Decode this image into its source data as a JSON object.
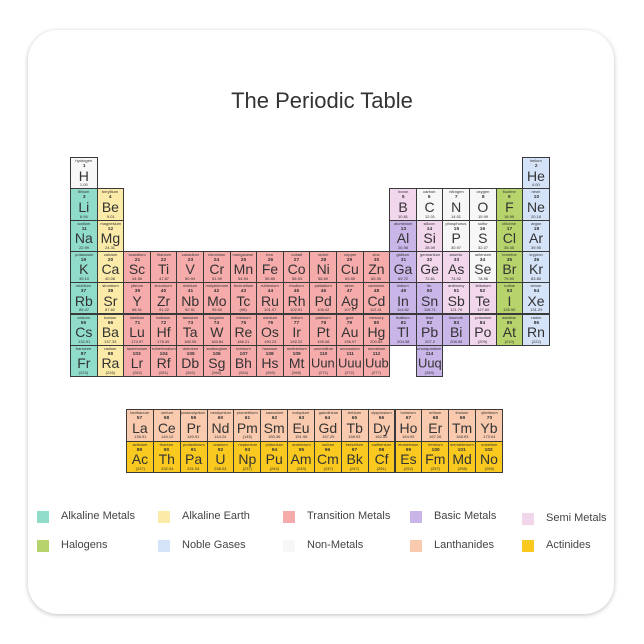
{
  "title": "The Periodic Table",
  "colors": {
    "alkaline": "#8fdccb",
    "alkaline_earth": "#fbeaa8",
    "transition": "#f6abab",
    "basic": "#c9b5e8",
    "semi": "#f1d6ec",
    "halogen": "#b6d36c",
    "noble": "#d5e3f8",
    "nonmetal": "#f7f7f7",
    "lanthanide": "#f9caae",
    "actinide": "#f9c920"
  },
  "legend": [
    {
      "key": "alkaline",
      "label": "Alkaline Metals"
    },
    {
      "key": "alkaline_earth",
      "label": "Alkaline Earth"
    },
    {
      "key": "transition",
      "label": "Transition Metals"
    },
    {
      "key": "basic",
      "label": "Basic Metals"
    },
    {
      "key": "semi",
      "label": "Semi Metals"
    },
    {
      "key": "halogen",
      "label": "Halogens"
    },
    {
      "key": "noble",
      "label": "Noble Gases"
    },
    {
      "key": "nonmetal",
      "label": "Non-Metals"
    },
    {
      "key": "lanthanide",
      "label": "Lanthanides"
    },
    {
      "key": "actinide",
      "label": "Actinides"
    }
  ],
  "elements": [
    [
      1,
      "H",
      "hydrogen",
      "1.00",
      "nonmetal",
      1,
      1
    ],
    [
      2,
      "He",
      "helium",
      "4.00",
      "noble",
      1,
      18
    ],
    [
      3,
      "Li",
      "lithium",
      "6.94",
      "alkaline",
      2,
      1
    ],
    [
      4,
      "Be",
      "beryllium",
      "9.01",
      "alkaline_earth",
      2,
      2
    ],
    [
      5,
      "B",
      "boron",
      "10.81",
      "semi",
      2,
      13
    ],
    [
      6,
      "C",
      "carbon",
      "12.01",
      "nonmetal",
      2,
      14
    ],
    [
      7,
      "N",
      "nitrogen",
      "14.01",
      "nonmetal",
      2,
      15
    ],
    [
      8,
      "O",
      "oxygen",
      "15.99",
      "nonmetal",
      2,
      16
    ],
    [
      9,
      "F",
      "fluorine",
      "18.99",
      "halogen",
      2,
      17
    ],
    [
      10,
      "Ne",
      "neon",
      "20.18",
      "noble",
      2,
      18
    ],
    [
      11,
      "Na",
      "sodium",
      "22.99",
      "alkaline",
      3,
      1
    ],
    [
      12,
      "Mg",
      "magnesium",
      "24.31",
      "alkaline_earth",
      3,
      2
    ],
    [
      13,
      "Al",
      "aluminium",
      "26.98",
      "basic",
      3,
      13
    ],
    [
      14,
      "Si",
      "silicon",
      "28.09",
      "semi",
      3,
      14
    ],
    [
      15,
      "P",
      "phosphorus",
      "30.97",
      "nonmetal",
      3,
      15
    ],
    [
      16,
      "S",
      "sulfur",
      "32.07",
      "nonmetal",
      3,
      16
    ],
    [
      17,
      "Cl",
      "chlorine",
      "35.45",
      "halogen",
      3,
      17
    ],
    [
      18,
      "Ar",
      "argon",
      "39.95",
      "noble",
      3,
      18
    ],
    [
      19,
      "K",
      "potassium",
      "39.10",
      "alkaline",
      4,
      1
    ],
    [
      20,
      "Ca",
      "calcium",
      "40.08",
      "alkaline_earth",
      4,
      2
    ],
    [
      21,
      "Sc",
      "scandium",
      "44.96",
      "transition",
      4,
      3
    ],
    [
      22,
      "Ti",
      "titanium",
      "47.87",
      "transition",
      4,
      4
    ],
    [
      23,
      "V",
      "vanadium",
      "50.94",
      "transition",
      4,
      5
    ],
    [
      24,
      "Cr",
      "chromium",
      "51.99",
      "transition",
      4,
      6
    ],
    [
      25,
      "Mn",
      "manganese",
      "54.94",
      "transition",
      4,
      7
    ],
    [
      26,
      "Fe",
      "iron",
      "55.85",
      "transition",
      4,
      8
    ],
    [
      27,
      "Co",
      "cobalt",
      "58.93",
      "transition",
      4,
      9
    ],
    [
      28,
      "Ni",
      "nickel",
      "58.69",
      "transition",
      4,
      10
    ],
    [
      29,
      "Cu",
      "copper",
      "63.55",
      "transition",
      4,
      11
    ],
    [
      30,
      "Zn",
      "zinc",
      "65.39",
      "transition",
      4,
      12
    ],
    [
      31,
      "Ga",
      "gallium",
      "69.72",
      "basic",
      4,
      13
    ],
    [
      32,
      "Ge",
      "germanium",
      "72.61",
      "semi",
      4,
      14
    ],
    [
      33,
      "As",
      "arsenic",
      "74.92",
      "semi",
      4,
      15
    ],
    [
      34,
      "Se",
      "selenium",
      "78.96",
      "nonmetal",
      4,
      16
    ],
    [
      35,
      "Br",
      "bromine",
      "79.90",
      "halogen",
      4,
      17
    ],
    [
      36,
      "Kr",
      "krypton",
      "83.80",
      "noble",
      4,
      18
    ],
    [
      37,
      "Rb",
      "rubidium",
      "85.47",
      "alkaline",
      5,
      1
    ],
    [
      38,
      "Sr",
      "strontium",
      "87.62",
      "alkaline_earth",
      5,
      2
    ],
    [
      39,
      "Y",
      "yttrium",
      "88.91",
      "transition",
      5,
      3
    ],
    [
      40,
      "Zr",
      "zirconium",
      "91.22",
      "transition",
      5,
      4
    ],
    [
      41,
      "Nb",
      "niobium",
      "92.91",
      "transition",
      5,
      5
    ],
    [
      42,
      "Mo",
      "molybdenum",
      "95.94",
      "transition",
      5,
      6
    ],
    [
      43,
      "Tc",
      "technetium",
      "(98)",
      "transition",
      5,
      7
    ],
    [
      44,
      "Ru",
      "ruthenium",
      "101.07",
      "transition",
      5,
      8
    ],
    [
      45,
      "Rh",
      "rhodium",
      "102.91",
      "transition",
      5,
      9
    ],
    [
      46,
      "Pd",
      "palladium",
      "106.42",
      "transition",
      5,
      10
    ],
    [
      47,
      "Ag",
      "silver",
      "107.87",
      "transition",
      5,
      11
    ],
    [
      48,
      "Cd",
      "cadmium",
      "112.41",
      "transition",
      5,
      12
    ],
    [
      49,
      "In",
      "indium",
      "114.82",
      "basic",
      5,
      13
    ],
    [
      50,
      "Sn",
      "tin",
      "118.71",
      "basic",
      5,
      14
    ],
    [
      51,
      "Sb",
      "antimony",
      "121.76",
      "semi",
      5,
      15
    ],
    [
      52,
      "Te",
      "tellurium",
      "127.60",
      "semi",
      5,
      16
    ],
    [
      53,
      "I",
      "iodine",
      "126.90",
      "halogen",
      5,
      17
    ],
    [
      54,
      "Xe",
      "xenon",
      "131.29",
      "noble",
      5,
      18
    ],
    [
      55,
      "Cs",
      "cesium",
      "132.91",
      "alkaline",
      6,
      1
    ],
    [
      56,
      "Ba",
      "barium",
      "137.33",
      "alkaline_earth",
      6,
      2
    ],
    [
      71,
      "Lu",
      "lutetium",
      "174.97",
      "transition",
      6,
      3
    ],
    [
      72,
      "Hf",
      "hafnium",
      "178.49",
      "transition",
      6,
      4
    ],
    [
      73,
      "Ta",
      "tantalum",
      "180.95",
      "transition",
      6,
      5
    ],
    [
      74,
      "W",
      "tungsten",
      "183.84",
      "transition",
      6,
      6
    ],
    [
      75,
      "Re",
      "rhenium",
      "186.21",
      "transition",
      6,
      7
    ],
    [
      76,
      "Os",
      "osmium",
      "190.23",
      "transition",
      6,
      8
    ],
    [
      77,
      "Ir",
      "iridium",
      "192.22",
      "transition",
      6,
      9
    ],
    [
      78,
      "Pt",
      "platinum",
      "195.08",
      "transition",
      6,
      10
    ],
    [
      79,
      "Au",
      "gold",
      "196.97",
      "transition",
      6,
      11
    ],
    [
      80,
      "Hg",
      "mercury",
      "200.59",
      "transition",
      6,
      12
    ],
    [
      81,
      "Tl",
      "thallium",
      "204.38",
      "basic",
      6,
      13
    ],
    [
      82,
      "Pb",
      "lead",
      "207.2",
      "basic",
      6,
      14
    ],
    [
      83,
      "Bi",
      "bismuth",
      "208.98",
      "basic",
      6,
      15
    ],
    [
      84,
      "Po",
      "polonium",
      "(209)",
      "semi",
      6,
      16
    ],
    [
      85,
      "At",
      "astatine",
      "(210)",
      "halogen",
      6,
      17
    ],
    [
      86,
      "Rn",
      "radon",
      "(222)",
      "noble",
      6,
      18
    ],
    [
      87,
      "Fr",
      "francium",
      "(223)",
      "alkaline",
      7,
      1
    ],
    [
      88,
      "Ra",
      "radium",
      "(226)",
      "alkaline_earth",
      7,
      2
    ],
    [
      103,
      "Lr",
      "lawrencium",
      "(262)",
      "transition",
      7,
      3
    ],
    [
      104,
      "Rf",
      "rutherfordium",
      "(261)",
      "transition",
      7,
      4
    ],
    [
      105,
      "Db",
      "dubnium",
      "(262)",
      "transition",
      7,
      5
    ],
    [
      106,
      "Sg",
      "seaborgium",
      "(266)",
      "transition",
      7,
      6
    ],
    [
      107,
      "Bh",
      "bohrium",
      "(264)",
      "transition",
      7,
      7
    ],
    [
      108,
      "Hs",
      "hassium",
      "(269)",
      "transition",
      7,
      8
    ],
    [
      109,
      "Mt",
      "meitnerium",
      "(268)",
      "transition",
      7,
      9
    ],
    [
      110,
      "Uun",
      "ununnilium",
      "(271)",
      "transition",
      7,
      10
    ],
    [
      111,
      "Uuu",
      "unununium",
      "(272)",
      "transition",
      7,
      11
    ],
    [
      112,
      "Uub",
      "ununbium",
      "(277)",
      "transition",
      7,
      12
    ],
    [
      114,
      "Uuq",
      "ununquadium",
      "(289)",
      "basic",
      7,
      14
    ]
  ],
  "lanthanides": [
    [
      57,
      "La",
      "lanthanum",
      "138.91"
    ],
    [
      58,
      "Ce",
      "cerium",
      "140.12"
    ],
    [
      59,
      "Pr",
      "praseodymium",
      "140.91"
    ],
    [
      60,
      "Nd",
      "neodymium",
      "144.24"
    ],
    [
      61,
      "Pm",
      "promethium",
      "(145)"
    ],
    [
      62,
      "Sm",
      "samarium",
      "150.36"
    ],
    [
      63,
      "Eu",
      "europium",
      "151.96"
    ],
    [
      64,
      "Gd",
      "gadolinium",
      "157.25"
    ],
    [
      65,
      "Tb",
      "terbium",
      "158.93"
    ],
    [
      66,
      "Dy",
      "dysprosium",
      "162.50"
    ],
    [
      67,
      "Ho",
      "holmium",
      "164.93"
    ],
    [
      68,
      "Er",
      "erbium",
      "167.26"
    ],
    [
      69,
      "Tm",
      "thulium",
      "168.93"
    ],
    [
      70,
      "Yb",
      "ytterbium",
      "173.04"
    ]
  ],
  "actinides": [
    [
      89,
      "Ac",
      "actinium",
      "(227)"
    ],
    [
      90,
      "Th",
      "thorium",
      "232.04"
    ],
    [
      91,
      "Pa",
      "protactinium",
      "231.04"
    ],
    [
      92,
      "U",
      "uranium",
      "238.03"
    ],
    [
      93,
      "Np",
      "neptunium",
      "(237)"
    ],
    [
      94,
      "Pu",
      "plutonium",
      "(244)"
    ],
    [
      95,
      "Am",
      "americium",
      "(243)"
    ],
    [
      96,
      "Cm",
      "curium",
      "(247)"
    ],
    [
      97,
      "Bk",
      "berkelium",
      "(247)"
    ],
    [
      98,
      "Cf",
      "californium",
      "(251)"
    ],
    [
      99,
      "Es",
      "einsteinium",
      "(252)"
    ],
    [
      100,
      "Fm",
      "fermium",
      "(257)"
    ],
    [
      101,
      "Md",
      "mendelevium",
      "(258)"
    ],
    [
      102,
      "No",
      "nobelium",
      "(259)"
    ]
  ]
}
